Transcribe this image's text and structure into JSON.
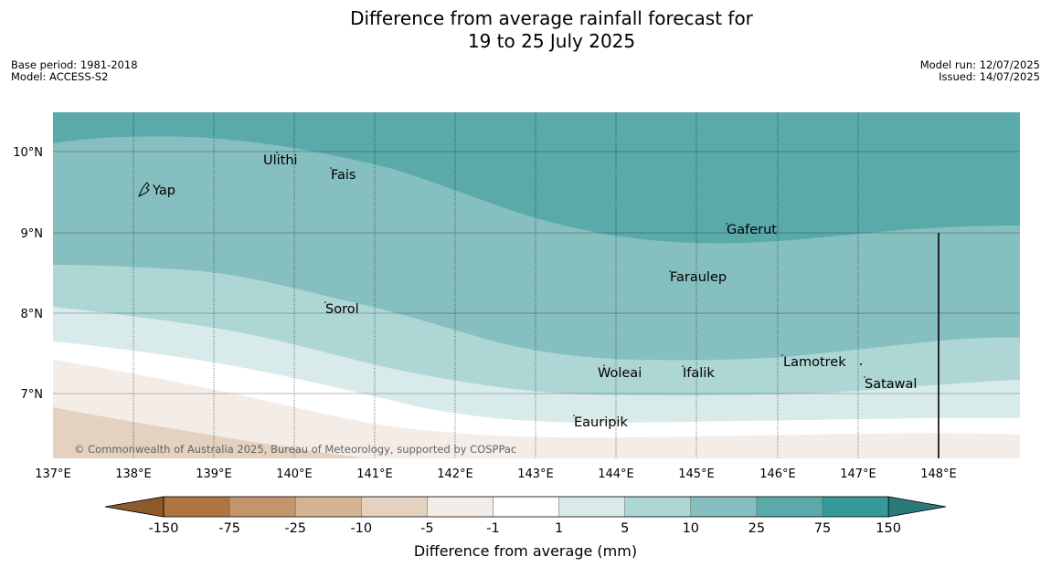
{
  "title": {
    "line1": "Difference from average rainfall forecast for",
    "line2": "19 to 25 July 2025"
  },
  "meta": {
    "base_period": "Base period: 1981-2018",
    "model": "Model: ACCESS-S2",
    "model_run": "Model run: 12/07/2025",
    "issued": "Issued: 14/07/2025"
  },
  "map": {
    "lon_labels": [
      "137°E",
      "138°E",
      "139°E",
      "140°E",
      "141°E",
      "142°E",
      "143°E",
      "144°E",
      "145°E",
      "146°E",
      "147°E",
      "148°E"
    ],
    "lat_labels": [
      "10°N",
      "9°N",
      "8°N",
      "7°N"
    ],
    "copyright": "© Commonwealth of Australia 2025, Bureau of Meteorology, supported by COSPPac",
    "places": [
      {
        "name": "Yap"
      },
      {
        "name": "Ulithi"
      },
      {
        "name": "Fais"
      },
      {
        "name": "Gaferut"
      },
      {
        "name": "Faraulep"
      },
      {
        "name": "Sorol"
      },
      {
        "name": "Lamotrek"
      },
      {
        "name": "Woleai"
      },
      {
        "name": "Ifalik"
      },
      {
        "name": "Satawal"
      },
      {
        "name": "Eauripik"
      }
    ]
  },
  "colorbar": {
    "ticks": [
      "-150",
      "-75",
      "-25",
      "-10",
      "-5",
      "-1",
      "1",
      "5",
      "10",
      "25",
      "75",
      "150"
    ],
    "colors": [
      "#8c5a2b",
      "#b07440",
      "#c4946a",
      "#d6b393",
      "#e4d1c0",
      "#f4ece7",
      "#ffffff",
      "#d8ebea",
      "#aed6d5",
      "#85bfbf",
      "#5aaaaa",
      "#359a99",
      "#2b7a78"
    ],
    "label": "Difference from average (mm)"
  }
}
